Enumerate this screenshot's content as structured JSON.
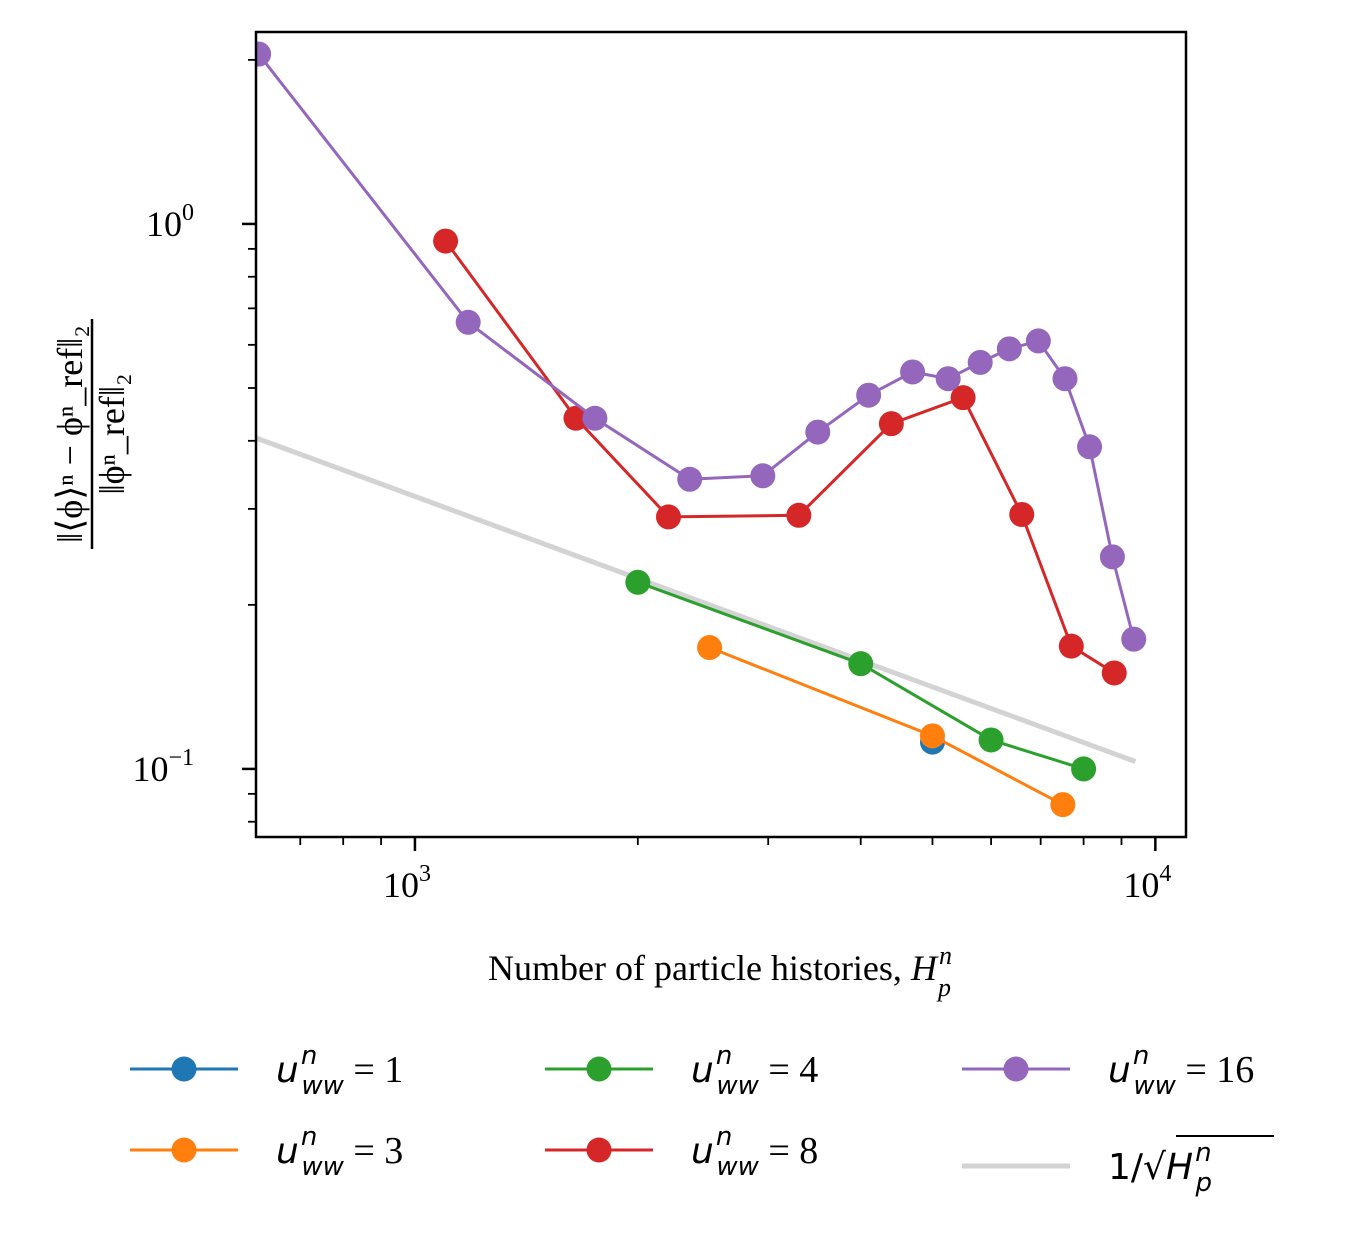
{
  "chart_data": {
    "type": "line",
    "x_scale": "log",
    "y_scale": "log",
    "xlim": [
      610,
      11000
    ],
    "ylim": [
      0.075,
      2.25
    ],
    "grid": false,
    "legend_placement": "bottom-outside",
    "xlabel": "Number of particle histories, ",
    "xlabel_math": "H",
    "xlabel_sub": "p",
    "xlabel_sup": "n",
    "ylabel_numerator": "‖⟨ϕ⟩ⁿ − ϕⁿ_ref‖₂",
    "ylabel_denominator": "‖ϕⁿ_ref‖₂",
    "x_ticks": [
      {
        "value": 1000,
        "base": "10",
        "exp": "3"
      },
      {
        "value": 10000,
        "base": "10",
        "exp": "4"
      }
    ],
    "y_ticks": [
      {
        "value": 1,
        "base": "10",
        "exp": "0"
      },
      {
        "value": 0.1,
        "base": "10",
        "exp": "−1"
      }
    ],
    "series": [
      {
        "name": "1",
        "color": "#1f77b4",
        "points": [
          [
            5000,
            0.112
          ]
        ]
      },
      {
        "name": "3",
        "color": "#ff7f0e",
        "points": [
          [
            2500,
            0.167
          ],
          [
            5000,
            0.115
          ],
          [
            7500,
            0.086
          ]
        ]
      },
      {
        "name": "4",
        "color": "#2ca02c",
        "points": [
          [
            2000,
            0.22
          ],
          [
            4000,
            0.156
          ],
          [
            6000,
            0.113
          ],
          [
            8000,
            0.1
          ]
        ]
      },
      {
        "name": "8",
        "color": "#d62728",
        "points": [
          [
            1100,
            0.93
          ],
          [
            1650,
            0.44
          ],
          [
            2200,
            0.29
          ],
          [
            3300,
            0.292
          ],
          [
            4400,
            0.43
          ],
          [
            5500,
            0.48
          ],
          [
            6600,
            0.293
          ],
          [
            7700,
            0.168
          ],
          [
            8800,
            0.15
          ]
        ]
      },
      {
        "name": "16",
        "color": "#9467bd",
        "points": [
          [
            615,
            2.05
          ],
          [
            1180,
            0.66
          ],
          [
            1750,
            0.44
          ],
          [
            2350,
            0.34
          ],
          [
            2950,
            0.345
          ],
          [
            3500,
            0.415
          ],
          [
            4100,
            0.485
          ],
          [
            4700,
            0.535
          ],
          [
            5250,
            0.52
          ],
          [
            5800,
            0.557
          ],
          [
            6350,
            0.59
          ],
          [
            6950,
            0.61
          ],
          [
            7550,
            0.52
          ],
          [
            8150,
            0.39
          ],
          [
            8750,
            0.245
          ],
          [
            9350,
            0.173
          ]
        ]
      }
    ],
    "reference_line": {
      "label_prefix": "1/√",
      "label_math": "H",
      "label_sub": "p",
      "label_sup": "n",
      "color": "#d3d3d3",
      "coefficient": 10,
      "x_range": [
        600,
        9400
      ]
    },
    "legend_math_prefix": "u",
    "legend_sub": "ww",
    "legend_sup": "n",
    "legend_eq": " = "
  }
}
